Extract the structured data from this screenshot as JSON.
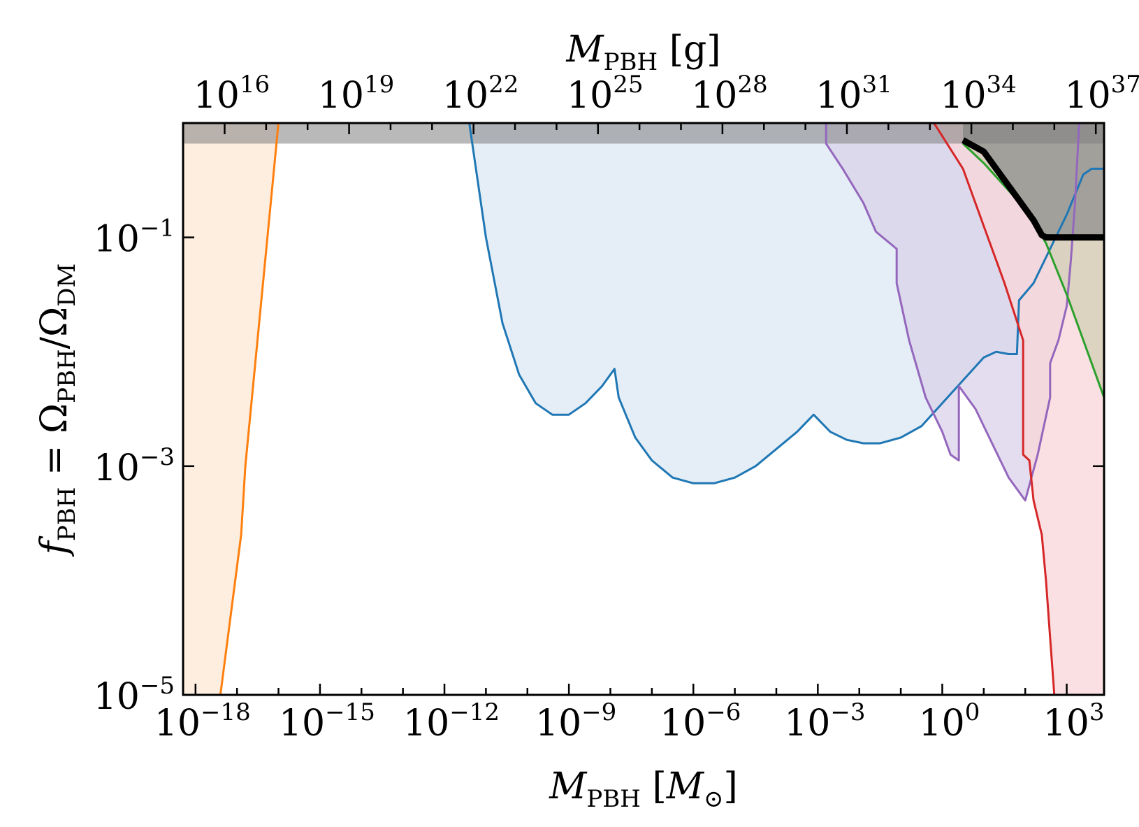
{
  "chart_data": {
    "type": "area",
    "xlabel": {
      "main": "M",
      "sub": "PBH",
      "unit_open": " [",
      "unit_main": "M",
      "unit_sub": "⊙",
      "unit_close": "]"
    },
    "x2label": {
      "main": "M",
      "sub": "PBH",
      "unit": " [g]"
    },
    "ylabel": {
      "main": "f",
      "sub1": "PBH",
      "eq": " = Ω",
      "sub2": "PBH",
      "slash": "/Ω",
      "sub3": "DM"
    },
    "x_scale": "log",
    "y_scale": "log",
    "xlim_log10": [
      -18.3,
      3.9
    ],
    "ylim_log10": [
      -5,
      0
    ],
    "x_tick_labels": [
      {
        "base": "10",
        "exp": "−18",
        "log10": -18
      },
      {
        "base": "10",
        "exp": "−15",
        "log10": -15
      },
      {
        "base": "10",
        "exp": "−12",
        "log10": -12
      },
      {
        "base": "10",
        "exp": "−9",
        "log10": -9
      },
      {
        "base": "10",
        "exp": "−6",
        "log10": -6
      },
      {
        "base": "10",
        "exp": "−3",
        "log10": -3
      },
      {
        "base": "10",
        "exp": "0",
        "log10": 0
      },
      {
        "base": "10",
        "exp": "3",
        "log10": 3
      }
    ],
    "x2_tick_labels": [
      {
        "base": "10",
        "exp": "16",
        "log10": 16
      },
      {
        "base": "10",
        "exp": "19",
        "log10": 19
      },
      {
        "base": "10",
        "exp": "22",
        "log10": 22
      },
      {
        "base": "10",
        "exp": "25",
        "log10": 25
      },
      {
        "base": "10",
        "exp": "28",
        "log10": 28
      },
      {
        "base": "10",
        "exp": "31",
        "log10": 31
      },
      {
        "base": "10",
        "exp": "34",
        "log10": 34
      },
      {
        "base": "10",
        "exp": "37",
        "log10": 37
      }
    ],
    "y_tick_labels": [
      {
        "base": "10",
        "exp": "−1",
        "log10": -1
      },
      {
        "base": "10",
        "exp": "−3",
        "log10": -3
      },
      {
        "base": "10",
        "exp": "−5",
        "log10": -5
      }
    ],
    "grey_band_log10_f": [
      -0.18,
      0
    ],
    "series": [
      {
        "color": "#ff7f0e",
        "fill": "#fde8d6",
        "fill_side": "left",
        "points_log10": [
          [
            -17.4,
            -5
          ],
          [
            -16.9,
            -3.6
          ],
          [
            -16.8,
            -3.0
          ],
          [
            -16.0,
            0
          ]
        ]
      },
      {
        "color": "#1f77b4",
        "fill": "#dce8f3",
        "fill_side": "above",
        "points_log10": [
          [
            -11.4,
            0
          ],
          [
            -11.0,
            -1.0
          ],
          [
            -10.6,
            -1.75
          ],
          [
            -10.2,
            -2.2
          ],
          [
            -9.8,
            -2.45
          ],
          [
            -9.4,
            -2.55
          ],
          [
            -9.0,
            -2.55
          ],
          [
            -8.6,
            -2.45
          ],
          [
            -8.2,
            -2.3
          ],
          [
            -7.9,
            -2.15
          ],
          [
            -7.8,
            -2.4
          ],
          [
            -7.4,
            -2.75
          ],
          [
            -7.0,
            -2.95
          ],
          [
            -6.5,
            -3.1
          ],
          [
            -6.0,
            -3.15
          ],
          [
            -5.5,
            -3.15
          ],
          [
            -5.0,
            -3.1
          ],
          [
            -4.5,
            -3.0
          ],
          [
            -4.0,
            -2.85
          ],
          [
            -3.5,
            -2.7
          ],
          [
            -3.1,
            -2.55
          ],
          [
            -2.7,
            -2.7
          ],
          [
            -2.3,
            -2.77
          ],
          [
            -1.9,
            -2.8
          ],
          [
            -1.5,
            -2.8
          ],
          [
            -1.0,
            -2.75
          ],
          [
            -0.5,
            -2.65
          ],
          [
            0.0,
            -2.45
          ],
          [
            0.5,
            -2.25
          ],
          [
            1.0,
            -2.05
          ],
          [
            1.3,
            -2.0
          ],
          [
            1.6,
            -2.02
          ],
          [
            1.8,
            -2.02
          ],
          [
            1.85,
            -1.55
          ],
          [
            2.2,
            -1.4
          ],
          [
            2.6,
            -1.1
          ],
          [
            3.0,
            -0.8
          ],
          [
            3.4,
            -0.45
          ],
          [
            3.6,
            -0.4
          ],
          [
            3.9,
            -0.4
          ]
        ]
      },
      {
        "color": "#9467bd",
        "fill": "#d9d2ea",
        "fill_side": "above",
        "points_log10": [
          [
            -2.8,
            0
          ],
          [
            -2.8,
            -0.18
          ],
          [
            -2.4,
            -0.4
          ],
          [
            -1.9,
            -0.7
          ],
          [
            -1.6,
            -0.95
          ],
          [
            -1.1,
            -1.1
          ],
          [
            -1.1,
            -1.4
          ],
          [
            -0.8,
            -1.9
          ],
          [
            -0.4,
            -2.4
          ],
          [
            0,
            -2.7
          ],
          [
            0.2,
            -2.9
          ],
          [
            0.4,
            -2.95
          ],
          [
            0.4,
            -2.3
          ],
          [
            0.8,
            -2.5
          ],
          [
            1.2,
            -2.8
          ],
          [
            1.6,
            -3.1
          ],
          [
            2.0,
            -3.3
          ],
          [
            2.3,
            -2.9
          ],
          [
            2.6,
            -2.4
          ],
          [
            2.6,
            -2.1
          ],
          [
            2.8,
            -1.9
          ],
          [
            3.0,
            -1.6
          ],
          [
            3.1,
            -1.2
          ],
          [
            3.2,
            -0.7
          ],
          [
            3.3,
            0
          ]
        ]
      },
      {
        "color": "#d62728",
        "fill": "#f8d6d8",
        "fill_side": "right",
        "points_log10": [
          [
            -0.2,
            0
          ],
          [
            0.5,
            -0.4
          ],
          [
            1.0,
            -0.9
          ],
          [
            1.5,
            -1.4
          ],
          [
            1.95,
            -1.9
          ],
          [
            1.95,
            -2.9
          ],
          [
            2.1,
            -2.95
          ],
          [
            2.2,
            -3.3
          ],
          [
            2.4,
            -3.6
          ],
          [
            2.5,
            -4.0
          ],
          [
            2.6,
            -4.5
          ],
          [
            2.7,
            -5.0
          ]
        ]
      },
      {
        "color": "#2ca02c",
        "fill": "#d3cfb5",
        "fill_side": "right",
        "points_log10": [
          [
            0.5,
            -0.18
          ],
          [
            1.0,
            -0.35
          ],
          [
            1.5,
            -0.55
          ],
          [
            2.0,
            -0.75
          ],
          [
            2.5,
            -1.05
          ],
          [
            3.0,
            -1.5
          ],
          [
            3.5,
            -2.0
          ],
          [
            3.9,
            -2.4
          ]
        ]
      },
      {
        "color": "#000000",
        "fill": "#8f8f8f",
        "fill_side": "above",
        "points_log10": [
          [
            0.5,
            -0.15
          ],
          [
            1.0,
            -0.25
          ],
          [
            1.3,
            -0.4
          ],
          [
            1.6,
            -0.55
          ],
          [
            1.9,
            -0.7
          ],
          [
            2.2,
            -0.85
          ],
          [
            2.4,
            -0.98
          ],
          [
            2.5,
            -1.0
          ],
          [
            3.9,
            -1.0
          ]
        ]
      }
    ]
  }
}
